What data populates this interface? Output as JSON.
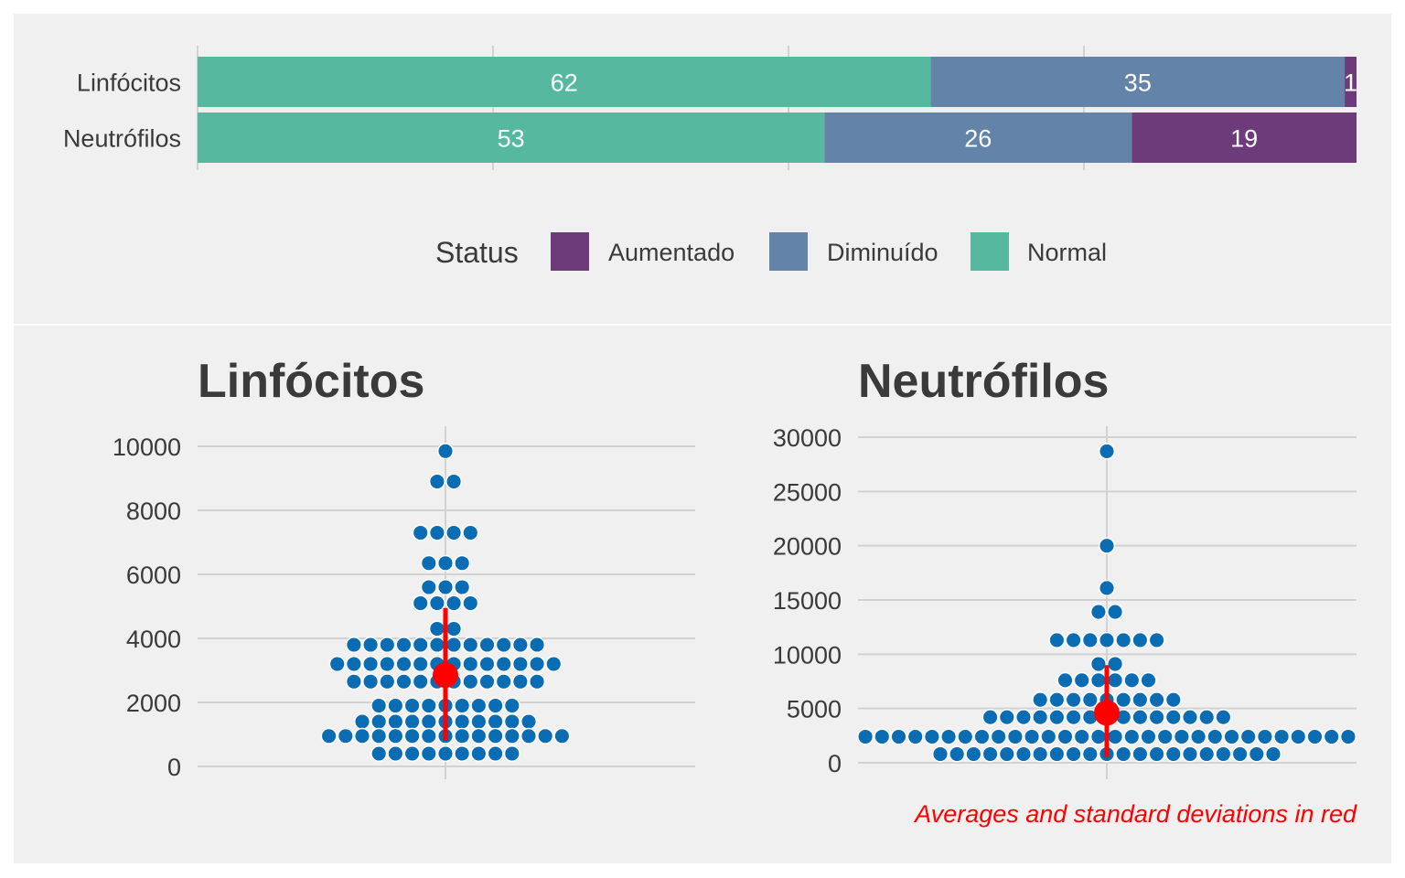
{
  "colors": {
    "panel_bg": "#f0f0f0",
    "grid": "#d2d2d2",
    "normal": "#55b89f",
    "diminuido": "#6384a8",
    "aumentado": "#6d3a7a",
    "dot": "#0a6db3",
    "mean": "#ff0000",
    "text": "#3a3a3a"
  },
  "caption": "Averages and standard deviations in red",
  "chart_data": [
    {
      "type": "bar",
      "orientation": "horizontal-stacked-percent",
      "categories": [
        "Linfócitos",
        "Neutrófilos"
      ],
      "series": [
        {
          "name": "Normal",
          "values": [
            62,
            53
          ]
        },
        {
          "name": "Diminuído",
          "values": [
            35,
            26
          ]
        },
        {
          "name": "Aumentado",
          "values": [
            1,
            19
          ]
        }
      ],
      "segment_labels": [
        [
          "62",
          "35",
          "1"
        ],
        [
          "53",
          "26",
          "19"
        ]
      ],
      "legend": {
        "title": "Status",
        "entries": [
          "Aumentado",
          "Diminuído",
          "Normal"
        ],
        "position": "bottom"
      },
      "grid": true
    },
    {
      "type": "scatter",
      "subtype": "beeswarm",
      "title": "Linfócitos",
      "ylim": [
        0,
        10000
      ],
      "yticks": [
        0,
        2000,
        4000,
        6000,
        8000,
        10000
      ],
      "mean": 2850,
      "sd_range": [
        800,
        4950
      ],
      "rows": [
        {
          "y": 9850,
          "n": 1
        },
        {
          "y": 8900,
          "n": 2
        },
        {
          "y": 7300,
          "n": 4
        },
        {
          "y": 6350,
          "n": 3
        },
        {
          "y": 5600,
          "n": 3
        },
        {
          "y": 5100,
          "n": 4
        },
        {
          "y": 4300,
          "n": 2
        },
        {
          "y": 3800,
          "n": 12
        },
        {
          "y": 3200,
          "n": 14
        },
        {
          "y": 2650,
          "n": 12
        },
        {
          "y": 1900,
          "n": 9
        },
        {
          "y": 1400,
          "n": 11
        },
        {
          "y": 950,
          "n": 15
        },
        {
          "y": 950,
          "n": 0
        },
        {
          "y": 400,
          "n": 9
        }
      ]
    },
    {
      "type": "scatter",
      "subtype": "beeswarm",
      "title": "Neutrófilos",
      "ylim": [
        0,
        30000
      ],
      "yticks": [
        0,
        5000,
        10000,
        15000,
        20000,
        25000,
        30000
      ],
      "mean": 4600,
      "sd_range": [
        500,
        9000
      ],
      "rows": [
        {
          "y": 28700,
          "n": 1
        },
        {
          "y": 20000,
          "n": 1
        },
        {
          "y": 16100,
          "n": 1
        },
        {
          "y": 13900,
          "n": 2
        },
        {
          "y": 11300,
          "n": 7
        },
        {
          "y": 9100,
          "n": 2
        },
        {
          "y": 7600,
          "n": 6
        },
        {
          "y": 5800,
          "n": 9
        },
        {
          "y": 4200,
          "n": 15
        },
        {
          "y": 2400,
          "n": 30
        },
        {
          "y": 800,
          "n": 21
        }
      ]
    }
  ]
}
